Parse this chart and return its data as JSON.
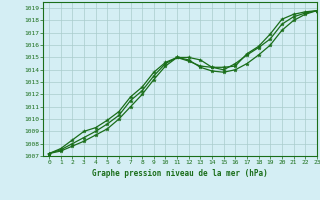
{
  "title": "Graphe pression niveau de la mer (hPa)",
  "bg_color": "#cce8d4",
  "plot_bg_color": "#d4eef4",
  "grid_color": "#aacccc",
  "line_color": "#1a6e1a",
  "xlim": [
    -0.5,
    23
  ],
  "ylim": [
    1007,
    1019.5
  ],
  "xticks": [
    0,
    1,
    2,
    3,
    4,
    5,
    6,
    7,
    8,
    9,
    10,
    11,
    12,
    13,
    14,
    15,
    16,
    17,
    18,
    19,
    20,
    21,
    22,
    23
  ],
  "yticks": [
    1007,
    1008,
    1009,
    1010,
    1011,
    1012,
    1013,
    1014,
    1015,
    1016,
    1017,
    1018,
    1019
  ],
  "line1_x": [
    0,
    1,
    2,
    3,
    4,
    5,
    6,
    7,
    8,
    9,
    10,
    11,
    12,
    13,
    14,
    15,
    16,
    17,
    18,
    19,
    20,
    21,
    22,
    23
  ],
  "line1_y": [
    1007.2,
    1007.4,
    1007.8,
    1008.2,
    1008.7,
    1009.2,
    1010.0,
    1011.0,
    1012.0,
    1013.2,
    1014.3,
    1015.0,
    1014.8,
    1014.2,
    1013.9,
    1013.8,
    1014.0,
    1014.5,
    1015.2,
    1016.0,
    1017.2,
    1018.0,
    1018.5,
    1018.8
  ],
  "line2_x": [
    0,
    1,
    2,
    3,
    4,
    5,
    6,
    7,
    8,
    9,
    10,
    11,
    12,
    13,
    14,
    15,
    16,
    17,
    18,
    19,
    20,
    21,
    22,
    23
  ],
  "line2_y": [
    1007.2,
    1007.5,
    1008.0,
    1008.5,
    1009.0,
    1009.6,
    1010.3,
    1011.5,
    1012.3,
    1013.5,
    1014.5,
    1015.0,
    1015.0,
    1014.8,
    1014.2,
    1014.0,
    1014.5,
    1015.2,
    1015.8,
    1016.5,
    1017.7,
    1018.3,
    1018.6,
    1018.8
  ],
  "line3_x": [
    0,
    1,
    2,
    3,
    4,
    5,
    6,
    7,
    8,
    9,
    10,
    11,
    12,
    13,
    14,
    15,
    16,
    17,
    18,
    19,
    20,
    21,
    22,
    23
  ],
  "line3_y": [
    1007.2,
    1007.6,
    1008.3,
    1009.0,
    1009.3,
    1009.9,
    1010.6,
    1011.8,
    1012.6,
    1013.8,
    1014.6,
    1015.0,
    1014.7,
    1014.3,
    1014.2,
    1014.2,
    1014.3,
    1015.3,
    1015.9,
    1016.9,
    1018.1,
    1018.5,
    1018.7,
    1018.8
  ]
}
